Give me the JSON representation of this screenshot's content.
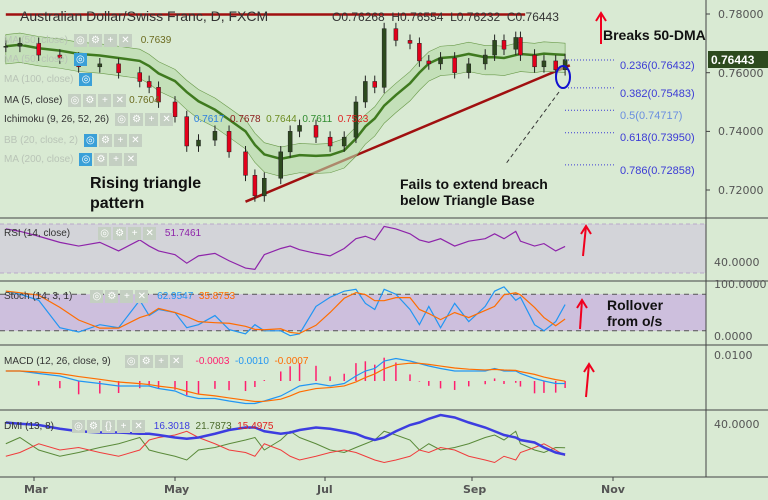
{
  "header": {
    "title": "Australian Dollar/Swiss Franc, D, FXCM",
    "open": "O0.76268",
    "high": "H0.76554",
    "low": "L0.76232",
    "close": "C0.76443"
  },
  "legend": [
    {
      "label": "MA (50, close)",
      "value": "0.7639"
    },
    {
      "label": "MA (50, close)",
      "value": ""
    },
    {
      "label": "MA (100, close)",
      "value": ""
    },
    {
      "label": "MA (5, close)",
      "value": "0.7604"
    },
    {
      "label": "Ichimoku (9, 26, 52, 26)",
      "values": [
        "0.7617",
        "0.7678",
        "0.7644",
        "0.7611",
        "0.7523"
      ]
    },
    {
      "label": "BB (20, close, 2)",
      "value": ""
    },
    {
      "label": "MA (200, close)",
      "value": ""
    }
  ],
  "indicators": {
    "rsi": {
      "label": "RSI (14, close)",
      "value": "51.7461"
    },
    "stoch": {
      "label": "Stoch (14, 3, 1)",
      "k": "62.9547",
      "d": "35.8753"
    },
    "macd": {
      "label": "MACD (12, 26, close, 9)",
      "hist": "-0.0003",
      "macd": "-0.0010",
      "signal": "-0.0007"
    },
    "dmi": {
      "label": "DMI (13, 8)",
      "adx": "16.3018",
      "plus_di": "21.7873",
      "minus_di": "15.4975"
    }
  },
  "annotations": {
    "pattern": "Rising triangle pattern",
    "fails": "Fails to extend breach below Triangle Base",
    "breaks": "Breaks 50-DMA",
    "rollover": "Rollover from o/s"
  },
  "fib_levels": [
    {
      "label": "0.236(0.76432)",
      "price": 0.76432
    },
    {
      "label": "0.382(0.75483)",
      "price": 0.75483
    },
    {
      "label": "0.5(0.74717)",
      "price": 0.74717
    },
    {
      "label": "0.618(0.73950)",
      "price": 0.7395
    },
    {
      "label": "0.786(0.72858)",
      "price": 0.72858
    }
  ],
  "price_axis": {
    "ticks": [
      "0.78000",
      "0.76000",
      "0.74000",
      "0.72000"
    ],
    "current": "0.76443"
  },
  "rsi_axis": [
    "40.0000"
  ],
  "stoch_axis": [
    "100.0000",
    "0.0000"
  ],
  "macd_axis": [
    "0.0100"
  ],
  "dmi_axis": [
    "40.0000"
  ],
  "time_axis": [
    "Mar",
    "May",
    "Jul",
    "Sep",
    "Nov"
  ],
  "colors": {
    "background": "#d9ead3",
    "bull": "#2d4a1e",
    "bear": "#e3001b",
    "ma50": "#3f7a1f",
    "trendline": "#a01010",
    "rsi": "#8e24aa",
    "stoch_k": "#2196f3",
    "stoch_d": "#ff6d00",
    "macd": "#2196f3",
    "signal": "#ff6d00",
    "hist": "#ff1e6e",
    "adx": "#3d3de0",
    "plus_di": "#5a8a3a",
    "minus_di": "#f03c3c",
    "current_price": "#2d4a1e"
  },
  "chart_data": {
    "type": "candlestick",
    "symbol": "Australian Dollar/Swiss Franc, D, FXCM",
    "dates": [
      "02-17",
      "02-23",
      "03-03",
      "03-12",
      "03-20",
      "03-29",
      "04-06",
      "04-15",
      "04-19",
      "04-23",
      "04-30",
      "05-05",
      "05-10",
      "05-17",
      "05-23",
      "05-30",
      "06-03",
      "06-07",
      "06-14",
      "06-18",
      "06-22",
      "06-29",
      "07-05",
      "07-11",
      "07-16",
      "07-20",
      "07-24",
      "07-28",
      "08-02",
      "08-08",
      "08-12",
      "08-16",
      "08-21",
      "08-27",
      "09-02",
      "09-09",
      "09-13",
      "09-17",
      "09-22",
      "09-24",
      "09-30",
      "10-04",
      "10-09",
      "10-13"
    ],
    "close": [
      0.769,
      0.77,
      0.766,
      0.765,
      0.762,
      0.763,
      0.76,
      0.757,
      0.755,
      0.75,
      0.745,
      0.735,
      0.737,
      0.74,
      0.733,
      0.725,
      0.718,
      0.724,
      0.733,
      0.74,
      0.742,
      0.738,
      0.735,
      0.738,
      0.75,
      0.757,
      0.755,
      0.775,
      0.771,
      0.77,
      0.764,
      0.763,
      0.765,
      0.76,
      0.763,
      0.766,
      0.771,
      0.768,
      0.772,
      0.766,
      0.762,
      0.764,
      0.761,
      0.76443
    ],
    "ylim": [
      0.712,
      0.785
    ],
    "resistance": {
      "price": 0.7805,
      "from": "02-17",
      "to": "09-26"
    },
    "triangle_base": {
      "from": {
        "date": "05-30",
        "price": 0.716
      },
      "to": {
        "date": "10-15",
        "price": 0.7625
      }
    },
    "rsi": [
      66,
      64,
      60,
      55,
      52,
      55,
      48,
      57,
      52,
      48,
      45,
      38,
      44,
      46,
      40,
      34,
      33,
      45,
      50,
      52,
      49,
      46,
      44,
      50,
      58,
      60,
      57,
      68,
      66,
      62,
      57,
      55,
      58,
      52,
      56,
      58,
      62,
      58,
      64,
      56,
      52,
      54,
      48,
      51.7
    ],
    "rsi_bands": [
      30,
      70
    ],
    "stoch_k": [
      85,
      80,
      70,
      25,
      18,
      30,
      25,
      70,
      45,
      55,
      50,
      25,
      30,
      45,
      22,
      15,
      30,
      20,
      20,
      12,
      15,
      60,
      75,
      85,
      88,
      65,
      55,
      88,
      80,
      55,
      30,
      60,
      25,
      65,
      35,
      60,
      85,
      92,
      70,
      75,
      30,
      20,
      35,
      63
    ],
    "stoch_bands": [
      20,
      80
    ],
    "macd": [
      0.004,
      0.004,
      0.003,
      0.002,
      0.0,
      -0.001,
      -0.002,
      -0.002,
      -0.002,
      -0.003,
      -0.004,
      -0.006,
      -0.007,
      -0.007,
      -0.008,
      -0.009,
      -0.009,
      -0.008,
      -0.006,
      -0.004,
      -0.002,
      -0.001,
      -0.002,
      -0.001,
      0.002,
      0.004,
      0.005,
      0.008,
      0.009,
      0.008,
      0.007,
      0.006,
      0.005,
      0.004,
      0.004,
      0.004,
      0.005,
      0.004,
      0.004,
      0.003,
      0.001,
      0.0,
      -0.001,
      -0.001
    ],
    "adx": [
      42,
      41,
      40,
      37,
      35,
      34,
      34,
      33,
      33,
      32,
      30,
      29,
      30,
      33,
      36,
      38,
      38,
      35,
      33,
      34,
      36,
      38,
      37,
      35,
      33,
      30,
      28,
      30,
      35,
      40,
      42,
      45,
      48,
      46,
      42,
      38,
      35,
      32,
      30,
      28,
      26,
      22,
      18,
      16.3
    ],
    "plus_di": [
      25,
      30,
      20,
      15,
      18,
      22,
      25,
      30,
      20,
      18,
      15,
      12,
      20,
      22,
      25,
      28,
      30,
      20,
      28,
      35,
      30,
      25,
      20,
      18,
      22,
      25,
      28,
      35,
      32,
      28,
      20,
      25,
      20,
      22,
      25,
      30,
      32,
      28,
      35,
      25,
      20,
      18,
      22,
      21.8
    ],
    "minus_di": [
      15,
      18,
      25,
      20,
      22,
      18,
      15,
      20,
      28,
      30,
      32,
      35,
      30,
      25,
      20,
      18,
      15,
      25,
      20,
      15,
      12,
      15,
      18,
      20,
      18,
      15,
      12,
      10,
      12,
      15,
      20,
      18,
      22,
      20,
      15,
      12,
      10,
      15,
      12,
      18,
      22,
      25,
      20,
      15.5
    ]
  }
}
